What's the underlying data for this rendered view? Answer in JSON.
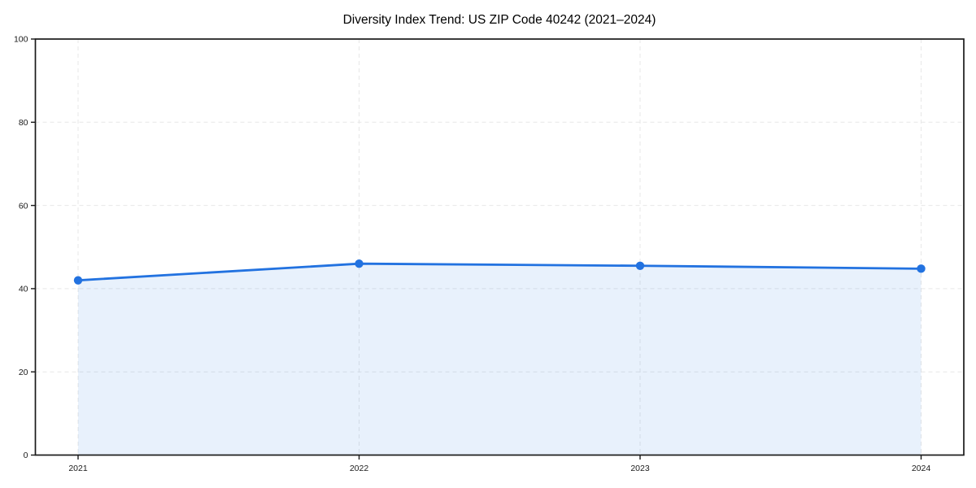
{
  "page": {
    "background_color": "#ffffff"
  },
  "chart_data": {
    "type": "line",
    "title": "Diversity Index Trend: US ZIP Code 40242 (2021–2024)",
    "categories": [
      "2021",
      "2022",
      "2023",
      "2024"
    ],
    "series": [
      {
        "name": "Diversity Index",
        "values": [
          42,
          46,
          45.5,
          44.8
        ]
      }
    ],
    "xlabel": "",
    "ylabel": "",
    "ylim": [
      0,
      100
    ],
    "yticks": [
      0,
      20,
      40,
      60,
      80,
      100
    ],
    "grid": "dashed, horizontal and vertical",
    "legend_position": "none",
    "marker": "circle",
    "area_under_line": true,
    "colors": {
      "line": "#2272e0",
      "marker": "#2272e0",
      "area_fill": "rgba(34,114,224,0.10)",
      "grid": "#e7e7e7",
      "axis": "#1a1a1a",
      "tick_label": "#1a1a1a",
      "title": "#000000",
      "background": "#ffffff"
    }
  }
}
